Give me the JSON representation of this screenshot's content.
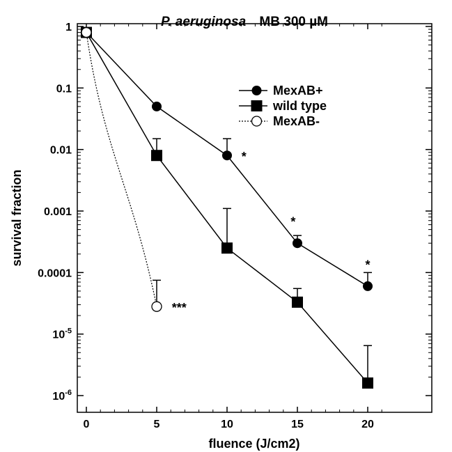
{
  "chart_data": {
    "type": "line",
    "title": {
      "italic_part": "P. aeruginosa",
      "rest": "MB 300 µM"
    },
    "xlabel": "fluence (J/cm2)",
    "ylabel": "survival fraction",
    "y_scale": "log",
    "xlim": [
      -1,
      22
    ],
    "ylim": [
      1e-06,
      1
    ],
    "x_ticks": [
      0,
      5,
      10,
      15,
      20
    ],
    "x_tick_labels": [
      "0",
      "5",
      "10",
      "15",
      "20"
    ],
    "y_ticks": [
      {
        "value": 1,
        "label": "1"
      },
      {
        "value": 0.1,
        "label": "0.1"
      },
      {
        "value": 0.01,
        "label": "0.01"
      },
      {
        "value": 0.001,
        "label": "0.001"
      },
      {
        "value": 0.0001,
        "label": "0.0001"
      },
      {
        "value": 1e-05,
        "base": "10",
        "exp": "-5"
      },
      {
        "value": 1e-06,
        "base": "10",
        "exp": "-6"
      }
    ],
    "legend_position": "top-right",
    "series": [
      {
        "name": "MexAB+",
        "marker": "filled-circle",
        "line": "solid",
        "x": [
          0,
          5,
          10,
          15,
          20
        ],
        "y": [
          0.8,
          0.05,
          0.008,
          0.0003,
          6e-05
        ],
        "err_upper": [
          null,
          null,
          0.015,
          0.0004,
          0.0001
        ]
      },
      {
        "name": "wild type",
        "marker": "filled-square",
        "line": "solid",
        "x": [
          0,
          5,
          10,
          15,
          20
        ],
        "y": [
          0.8,
          0.008,
          0.00025,
          3.3e-05,
          1.6e-06
        ],
        "err_upper": [
          null,
          0.015,
          0.0011,
          5.5e-05,
          6.5e-06
        ]
      },
      {
        "name": "MexAB-",
        "marker": "open-circle",
        "line": "dotted",
        "x": [
          0,
          5
        ],
        "y": [
          0.8,
          2.8e-05
        ],
        "err_upper": [
          null,
          7.5e-05
        ]
      }
    ],
    "annotations": [
      {
        "text": "*",
        "x": 11.2,
        "y": 0.008
      },
      {
        "text": "*",
        "x": 14.7,
        "y": 0.0007
      },
      {
        "text": "*",
        "x": 20.0,
        "y": 0.00014
      },
      {
        "text": "***",
        "x": 6.6,
        "y": 2.8e-05
      }
    ]
  }
}
